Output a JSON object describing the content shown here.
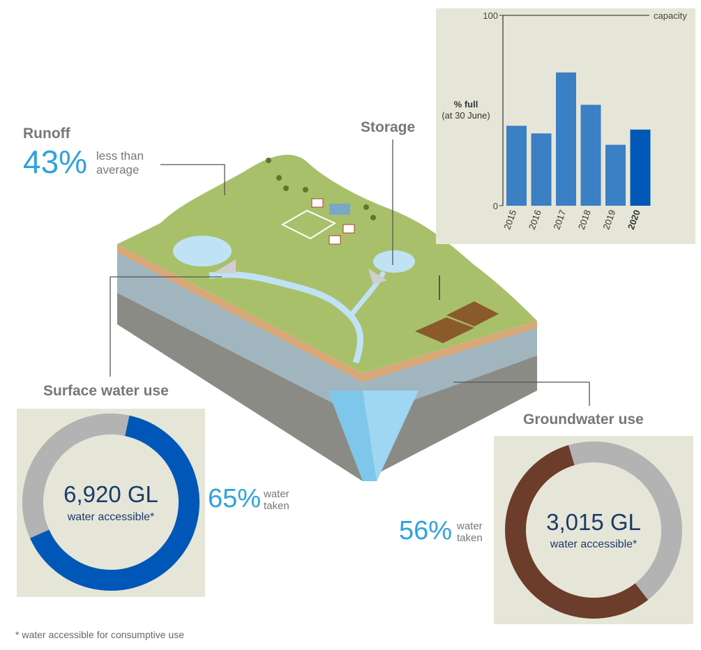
{
  "runoff": {
    "heading": "Runoff",
    "percent": "43%",
    "desc_line1": "less than",
    "desc_line2": "average"
  },
  "storage": {
    "heading": "Storage"
  },
  "surface": {
    "heading": "Surface water use",
    "volume": "6,920 GL",
    "sub": "water accessible*",
    "percent": "65%",
    "taken_line1": "water",
    "taken_line2": "taken"
  },
  "groundwater": {
    "heading": "Groundwater use",
    "volume": "3,015 GL",
    "sub": "water accessible*",
    "percent": "56%",
    "taken_line1": "water",
    "taken_line2": "taken"
  },
  "footnote": "* water accessible for consumptive use",
  "colors": {
    "bar": "#3b7fc4",
    "bar_highlight": "#0057b8",
    "surface_taken": "#0057b8",
    "ground_taken": "#6b3d2a",
    "remaining": "#b3b3b3",
    "panel": "#e6e6d8",
    "accent_text": "#2ea3dc"
  },
  "chart_data": [
    {
      "type": "bar",
      "title": "",
      "ylabel_line1": "% full",
      "ylabel_line2": "(at 30 June)",
      "capacity_label": "capacity",
      "ylim": [
        0,
        100
      ],
      "yticks": [
        "0",
        "100"
      ],
      "categories": [
        "2015",
        "2016",
        "2017",
        "2018",
        "2019",
        "2020"
      ],
      "values": [
        42,
        38,
        70,
        53,
        32,
        40
      ],
      "highlight": "2020"
    },
    {
      "type": "pie",
      "title": "Surface water use",
      "categories": [
        "water taken",
        "remaining"
      ],
      "values": [
        65,
        35
      ]
    },
    {
      "type": "pie",
      "title": "Groundwater use",
      "categories": [
        "water taken",
        "remaining"
      ],
      "values": [
        56,
        44
      ]
    }
  ]
}
